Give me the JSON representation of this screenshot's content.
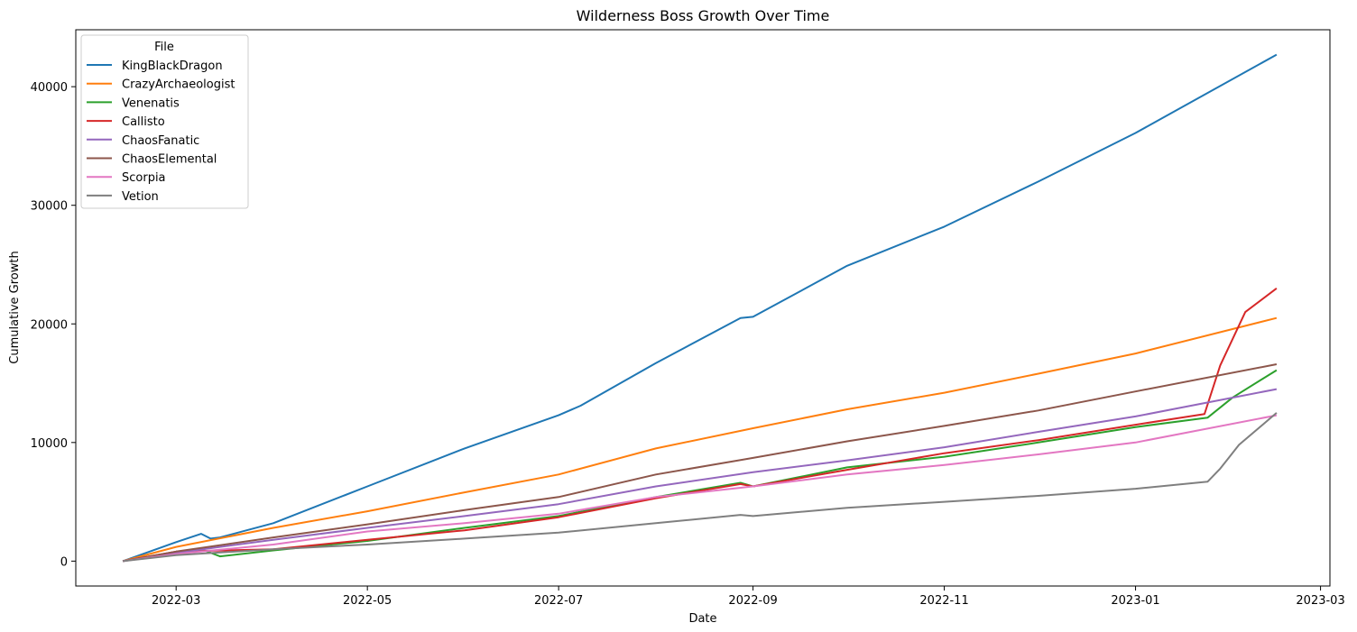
{
  "chart_data": {
    "type": "line",
    "title": "Wilderness Boss Growth Over Time",
    "xlabel": "Date",
    "ylabel": "Cumulative Growth",
    "xlim": [
      "2022-01-28",
      "2023-03-04"
    ],
    "ylim": [
      -2100,
      44800
    ],
    "x_ticks": [
      "2022-03-01",
      "2022-05-01",
      "2022-07-01",
      "2022-09-01",
      "2022-11-01",
      "2023-01-01",
      "2023-03-01"
    ],
    "x_tick_labels": [
      "2022-03",
      "2022-05",
      "2022-07",
      "2022-09",
      "2022-11",
      "2023-01",
      "2023-03"
    ],
    "y_ticks": [
      0,
      10000,
      20000,
      30000,
      40000
    ],
    "y_tick_labels": [
      "0",
      "10000",
      "20000",
      "30000",
      "40000"
    ],
    "grid": false,
    "legend": {
      "title": "File",
      "position": "top-left"
    },
    "series": [
      {
        "name": "KingBlackDragon",
        "color": "#1f77b4",
        "points": [
          [
            "2022-02-12",
            0
          ],
          [
            "2022-03-01",
            1600
          ],
          [
            "2022-03-09",
            2300
          ],
          [
            "2022-03-12",
            1900
          ],
          [
            "2022-03-15",
            2000
          ],
          [
            "2022-04-01",
            3200
          ],
          [
            "2022-05-01",
            6300
          ],
          [
            "2022-06-01",
            9500
          ],
          [
            "2022-07-01",
            12300
          ],
          [
            "2022-07-08",
            13100
          ],
          [
            "2022-08-01",
            16700
          ],
          [
            "2022-08-28",
            20500
          ],
          [
            "2022-09-01",
            20600
          ],
          [
            "2022-10-01",
            24900
          ],
          [
            "2022-11-01",
            28200
          ],
          [
            "2022-12-01",
            32000
          ],
          [
            "2023-01-01",
            36100
          ],
          [
            "2023-02-15",
            42700
          ]
        ]
      },
      {
        "name": "CrazyArchaeologist",
        "color": "#ff7f0e",
        "points": [
          [
            "2022-02-12",
            0
          ],
          [
            "2022-03-01",
            1200
          ],
          [
            "2022-04-01",
            2800
          ],
          [
            "2022-05-01",
            4200
          ],
          [
            "2022-06-01",
            5800
          ],
          [
            "2022-07-01",
            7300
          ],
          [
            "2022-08-01",
            9500
          ],
          [
            "2022-09-01",
            11200
          ],
          [
            "2022-10-01",
            12800
          ],
          [
            "2022-11-01",
            14200
          ],
          [
            "2022-12-01",
            15800
          ],
          [
            "2023-01-01",
            17500
          ],
          [
            "2023-02-15",
            20500
          ]
        ]
      },
      {
        "name": "Venenatis",
        "color": "#2ca02c",
        "points": [
          [
            "2022-02-12",
            0
          ],
          [
            "2022-03-01",
            700
          ],
          [
            "2022-03-10",
            900
          ],
          [
            "2022-03-15",
            400
          ],
          [
            "2022-04-01",
            900
          ],
          [
            "2022-05-01",
            1700
          ],
          [
            "2022-06-01",
            2800
          ],
          [
            "2022-07-01",
            3800
          ],
          [
            "2022-08-01",
            5400
          ],
          [
            "2022-08-28",
            6600
          ],
          [
            "2022-09-01",
            6300
          ],
          [
            "2022-10-01",
            7900
          ],
          [
            "2022-11-01",
            8800
          ],
          [
            "2022-12-01",
            10000
          ],
          [
            "2023-01-01",
            11300
          ],
          [
            "2023-01-24",
            12100
          ],
          [
            "2023-02-01",
            13800
          ],
          [
            "2023-02-15",
            16100
          ]
        ]
      },
      {
        "name": "Callisto",
        "color": "#d62728",
        "points": [
          [
            "2022-02-12",
            0
          ],
          [
            "2022-03-01",
            800
          ],
          [
            "2022-04-01",
            1000
          ],
          [
            "2022-05-01",
            1800
          ],
          [
            "2022-06-01",
            2600
          ],
          [
            "2022-07-01",
            3700
          ],
          [
            "2022-08-01",
            5300
          ],
          [
            "2022-08-28",
            6500
          ],
          [
            "2022-09-01",
            6300
          ],
          [
            "2022-10-01",
            7700
          ],
          [
            "2022-11-01",
            9100
          ],
          [
            "2022-12-01",
            10200
          ],
          [
            "2023-01-01",
            11500
          ],
          [
            "2023-01-23",
            12400
          ],
          [
            "2023-01-28",
            16500
          ],
          [
            "2023-02-05",
            21000
          ],
          [
            "2023-02-15",
            23000
          ]
        ]
      },
      {
        "name": "ChaosFanatic",
        "color": "#9467bd",
        "points": [
          [
            "2022-02-12",
            0
          ],
          [
            "2022-03-01",
            700
          ],
          [
            "2022-04-01",
            1800
          ],
          [
            "2022-05-01",
            2800
          ],
          [
            "2022-06-01",
            3800
          ],
          [
            "2022-07-01",
            4800
          ],
          [
            "2022-08-01",
            6300
          ],
          [
            "2022-09-01",
            7500
          ],
          [
            "2022-10-01",
            8500
          ],
          [
            "2022-11-01",
            9600
          ],
          [
            "2022-12-01",
            10900
          ],
          [
            "2023-01-01",
            12200
          ],
          [
            "2023-02-15",
            14500
          ]
        ]
      },
      {
        "name": "ChaosElemental",
        "color": "#8c564b",
        "points": [
          [
            "2022-02-12",
            0
          ],
          [
            "2022-03-01",
            800
          ],
          [
            "2022-04-01",
            2000
          ],
          [
            "2022-05-01",
            3100
          ],
          [
            "2022-06-01",
            4300
          ],
          [
            "2022-07-01",
            5400
          ],
          [
            "2022-08-01",
            7300
          ],
          [
            "2022-09-01",
            8700
          ],
          [
            "2022-10-01",
            10100
          ],
          [
            "2022-11-01",
            11400
          ],
          [
            "2022-12-01",
            12700
          ],
          [
            "2023-01-01",
            14300
          ],
          [
            "2023-02-15",
            16600
          ]
        ]
      },
      {
        "name": "Scorpia",
        "color": "#e377c2",
        "points": [
          [
            "2022-02-12",
            0
          ],
          [
            "2022-03-01",
            600
          ],
          [
            "2022-04-01",
            1400
          ],
          [
            "2022-05-01",
            2500
          ],
          [
            "2022-06-01",
            3200
          ],
          [
            "2022-07-01",
            4000
          ],
          [
            "2022-08-01",
            5400
          ],
          [
            "2022-09-01",
            6300
          ],
          [
            "2022-10-01",
            7300
          ],
          [
            "2022-11-01",
            8100
          ],
          [
            "2022-12-01",
            9000
          ],
          [
            "2023-01-01",
            10000
          ],
          [
            "2023-02-15",
            12300
          ]
        ]
      },
      {
        "name": "Vetion",
        "color": "#7f7f7f",
        "points": [
          [
            "2022-02-12",
            0
          ],
          [
            "2022-03-01",
            500
          ],
          [
            "2022-04-01",
            1000
          ],
          [
            "2022-05-01",
            1400
          ],
          [
            "2022-06-01",
            1900
          ],
          [
            "2022-07-01",
            2400
          ],
          [
            "2022-08-01",
            3200
          ],
          [
            "2022-08-28",
            3900
          ],
          [
            "2022-09-01",
            3800
          ],
          [
            "2022-10-01",
            4500
          ],
          [
            "2022-11-01",
            5000
          ],
          [
            "2022-12-01",
            5500
          ],
          [
            "2023-01-01",
            6100
          ],
          [
            "2023-01-24",
            6700
          ],
          [
            "2023-01-28",
            7800
          ],
          [
            "2023-02-03",
            9800
          ],
          [
            "2023-02-15",
            12500
          ]
        ]
      }
    ]
  }
}
